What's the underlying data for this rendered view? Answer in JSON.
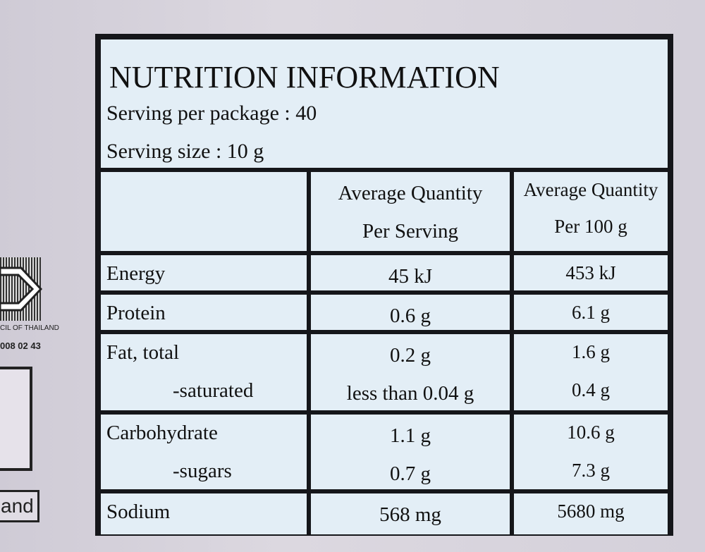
{
  "header": {
    "title": "NUTRITION  INFORMATION",
    "serving_per_package": "Serving per package : 40",
    "serving_size": "Serving size : 10 g"
  },
  "table": {
    "columns": [
      [
        "Average Quantity",
        "Per Serving"
      ],
      [
        "Average Quantity",
        "Per 100 g"
      ]
    ],
    "rows": [
      [
        "Energy",
        "45 kJ",
        "453 kJ"
      ],
      [
        "Protein",
        "0.6 g",
        "6.1 g"
      ],
      [
        "Fat, total",
        "0.2 g",
        "1.6 g"
      ],
      [
        "-saturated",
        "less than 0.04 g",
        "0.4 g"
      ],
      [
        "Carbohydrate",
        "1.1 g",
        "10.6 g"
      ],
      [
        "-sugars",
        "0.7 g",
        "7.3 g"
      ],
      [
        "Sodium",
        "568 mg",
        "5680 mg"
      ]
    ]
  },
  "side": {
    "labels": [
      "CIL OF THAILAND",
      "008 02 43",
      "and"
    ]
  }
}
